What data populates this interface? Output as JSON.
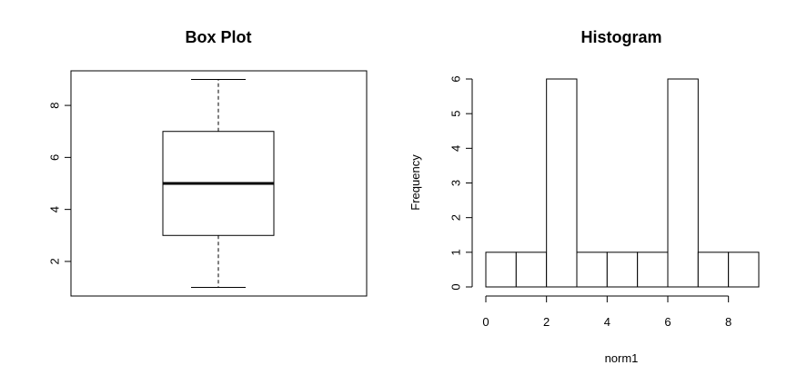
{
  "chart_data": [
    {
      "type": "box",
      "title": "Box Plot",
      "xlabel": "",
      "ylabel": "",
      "ylim": [
        0.67,
        9.33
      ],
      "yticks": [
        2,
        4,
        6,
        8
      ],
      "ytick_labels": [
        "2",
        "4",
        "6",
        "8"
      ],
      "box": {
        "min": 1,
        "q1": 3,
        "median": 5,
        "q3": 7,
        "max": 9
      }
    },
    {
      "type": "bar",
      "title": "Histogram",
      "xlabel": "norm1",
      "ylabel": "Frequency",
      "xlim": [
        0,
        9
      ],
      "ylim": [
        0,
        6
      ],
      "xticks": [
        0,
        2,
        4,
        6,
        8
      ],
      "xtick_labels": [
        "0",
        "2",
        "4",
        "6",
        "8"
      ],
      "yticks": [
        0,
        1,
        2,
        3,
        4,
        5,
        6
      ],
      "ytick_labels": [
        "0",
        "1",
        "2",
        "3",
        "4",
        "5",
        "6"
      ],
      "bins": [
        {
          "x0": 0,
          "x1": 1,
          "count": 1
        },
        {
          "x0": 1,
          "x1": 2,
          "count": 1
        },
        {
          "x0": 2,
          "x1": 3,
          "count": 6
        },
        {
          "x0": 3,
          "x1": 4,
          "count": 1
        },
        {
          "x0": 4,
          "x1": 5,
          "count": 1
        },
        {
          "x0": 5,
          "x1": 6,
          "count": 1
        },
        {
          "x0": 6,
          "x1": 7,
          "count": 6
        },
        {
          "x0": 7,
          "x1": 8,
          "count": 1
        },
        {
          "x0": 8,
          "x1": 9,
          "count": 1
        }
      ]
    }
  ]
}
